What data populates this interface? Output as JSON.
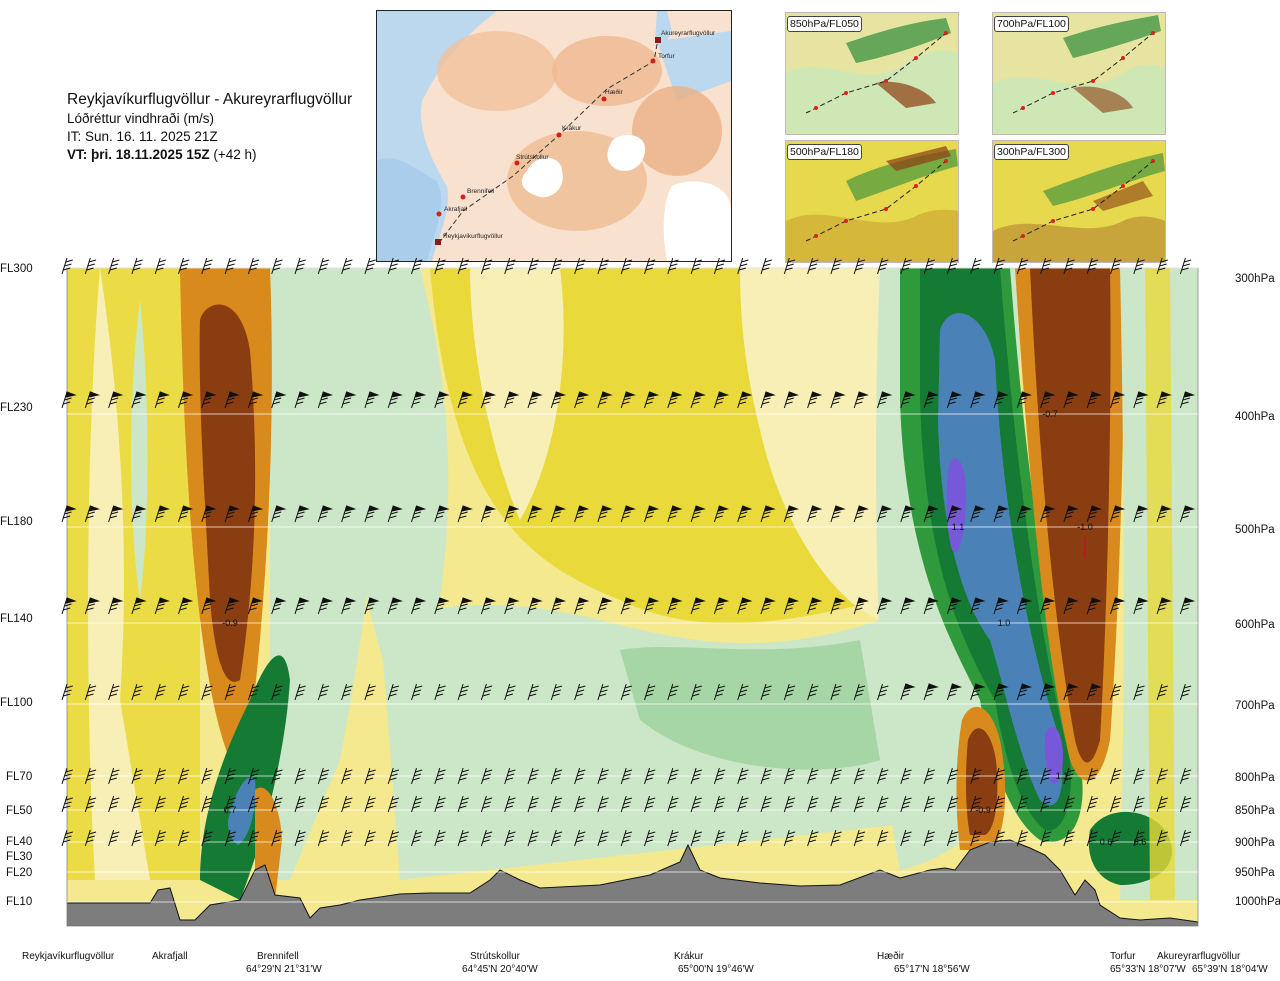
{
  "header": {
    "route": "Reykjavíkurflugvöllur - Akureyrarflugvöllur",
    "parameter": "Lóðréttur vindhraði (m/s)",
    "issue_time": "IT: Sun. 16. 11. 2025 21Z",
    "valid_time_bold": "VT: þri. 18.11.2025 15Z",
    "valid_time_offset": "(+42 h)"
  },
  "map_inset": {
    "waypoints": [
      "Akureyrarflugvöllur",
      "Torfur",
      "Hæðir",
      "Krákur",
      "Strútskollur",
      "Brennifell",
      "Akrafjall",
      "Reykjavíkurflugvöllur"
    ]
  },
  "panels": [
    {
      "label": "850hPa/FL050"
    },
    {
      "label": "700hPa/FL100"
    },
    {
      "label": "500hPa/FL180"
    },
    {
      "label": "300hPa/FL300"
    }
  ],
  "colors": {
    "strong_down": "#8b3d12",
    "down": "#d88a1c",
    "mod_down": "#e9c51f",
    "weak_down": "#f4e98e",
    "weak_up": "#cce7c8",
    "mod_up": "#88c88a",
    "up": "#2f9a3c",
    "strong_up": "#157a33",
    "very_up": "#4a82b8",
    "extreme_up": "#7758d8",
    "terrain": "#7d7d7d",
    "barb": "#111111",
    "panel_label_border": "#444444"
  },
  "chart_data": {
    "type": "heatmap",
    "title": "Reykjavíkurflugvöllur - Akureyrarflugvöllur",
    "variable": "Lóðréttur vindhraði (m/s)",
    "x_axis": "distance along route",
    "y_axis": "pressure level (hPa)",
    "flight_levels": [
      "FL300",
      "FL230",
      "FL180",
      "FL140",
      "FL100",
      "FL70",
      "FL50",
      "FL40",
      "FL30",
      "FL20",
      "FL10"
    ],
    "pressure_levels": [
      "300hPa",
      "400hPa",
      "500hPa",
      "600hPa",
      "700hPa",
      "800hPa",
      "850hPa",
      "900hPa",
      "950hPa",
      "1000hPa"
    ],
    "annotations": [
      {
        "text": "-0.9",
        "station": "Brennifell",
        "level_hPa": 600
      },
      {
        "text": "0.7",
        "station": "Brennifell",
        "level_hPa": 850
      },
      {
        "text": "-0.7",
        "station": "Torfur",
        "level_hPa": 400
      },
      {
        "text": "1.1",
        "station": "Hæðir",
        "level_hPa": 500
      },
      {
        "text": "-1.0",
        "station": "Torfur",
        "level_hPa": 500
      },
      {
        "text": "1.0",
        "station": "Hæðir",
        "level_hPa": 600
      },
      {
        "text": "1.1",
        "station": "Hæðir",
        "level_hPa": 800
      },
      {
        "text": "-0.9",
        "station": "Hæðir",
        "level_hPa": 850
      },
      {
        "text": "0.6",
        "station": "Torfur",
        "level_hPa": 900
      },
      {
        "text": "0.6",
        "station": "Akureyrarflugvöllur",
        "level_hPa": 900
      }
    ],
    "waypoints": [
      {
        "name": "Reykjavíkurflugvöllur",
        "coord": ""
      },
      {
        "name": "Akrafjall",
        "coord": ""
      },
      {
        "name": "Brennifell",
        "coord": "64°29'N 21°31'W"
      },
      {
        "name": "Strútskollur",
        "coord": "64°45'N 20°40'W"
      },
      {
        "name": "Krákur",
        "coord": "65°00'N 19°46'W"
      },
      {
        "name": "Hæðir",
        "coord": "65°17'N 18°56'W"
      },
      {
        "name": "Torfur",
        "coord": "65°33'N 18°07'W"
      },
      {
        "name": "Akureyrarflugvöllur",
        "coord": "65°39'N 18°04'W"
      }
    ]
  }
}
